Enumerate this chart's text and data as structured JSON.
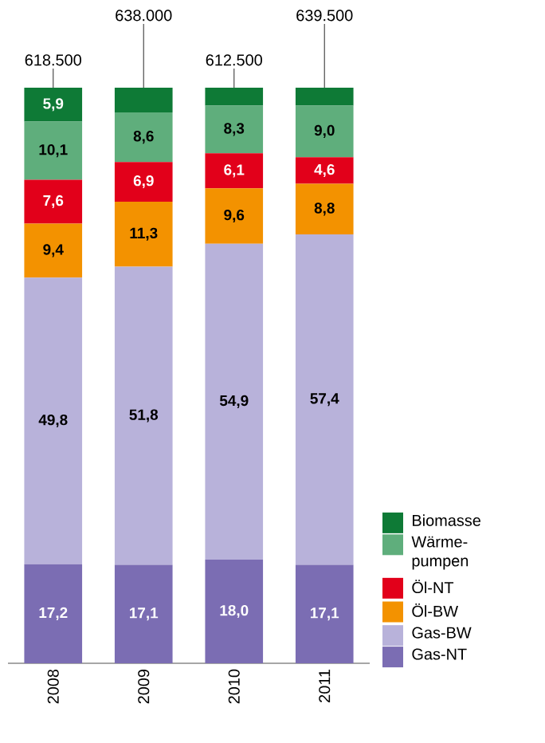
{
  "chart_data": {
    "type": "bar",
    "stacked": true,
    "categories": [
      "2008",
      "2009",
      "2010",
      "2011"
    ],
    "series": [
      {
        "name": "Gas-NT",
        "color": "#7b6db3",
        "values": [
          17.2,
          17.1,
          18.0,
          17.1
        ],
        "value_labels": [
          "17,2",
          "17,1",
          "18,0",
          "17,1"
        ]
      },
      {
        "name": "Gas-BW",
        "color": "#b8b2da",
        "values": [
          49.8,
          51.8,
          54.9,
          57.4
        ],
        "value_labels": [
          "49,8",
          "51,8",
          "54,9",
          "57,4"
        ]
      },
      {
        "name": "Öl-BW",
        "color": "#f39200",
        "values": [
          9.4,
          11.3,
          9.6,
          8.8
        ],
        "value_labels": [
          "9,4",
          "11,3",
          "9,6",
          "8,8"
        ]
      },
      {
        "name": "Öl-NT",
        "color": "#e2001a",
        "values": [
          7.6,
          6.9,
          6.1,
          4.6
        ],
        "value_labels": [
          "7,6",
          "6,9",
          "6,1",
          "4,6"
        ]
      },
      {
        "name": "Wärme-pumpen",
        "color": "#5fae7c",
        "values": [
          10.1,
          8.6,
          8.3,
          9.0
        ],
        "value_labels": [
          "10,1",
          "8,6",
          "8,3",
          "9,0"
        ]
      },
      {
        "name": "Biomasse",
        "color": "#0e7a36",
        "values": [
          5.9,
          4.3,
          3.1,
          3.1
        ],
        "value_labels": [
          "5,9",
          null,
          null,
          null
        ]
      }
    ],
    "annotations": [
      {
        "text": "618.500",
        "x": "2008",
        "y": 100
      },
      {
        "text": "638.000",
        "x": "2009",
        "y": 100
      },
      {
        "text": "612.500",
        "x": "2010",
        "y": 100
      },
      {
        "text": "639.500",
        "x": "2011",
        "y": 100
      }
    ],
    "tick_labels": "x",
    "legend": "bottom right"
  }
}
